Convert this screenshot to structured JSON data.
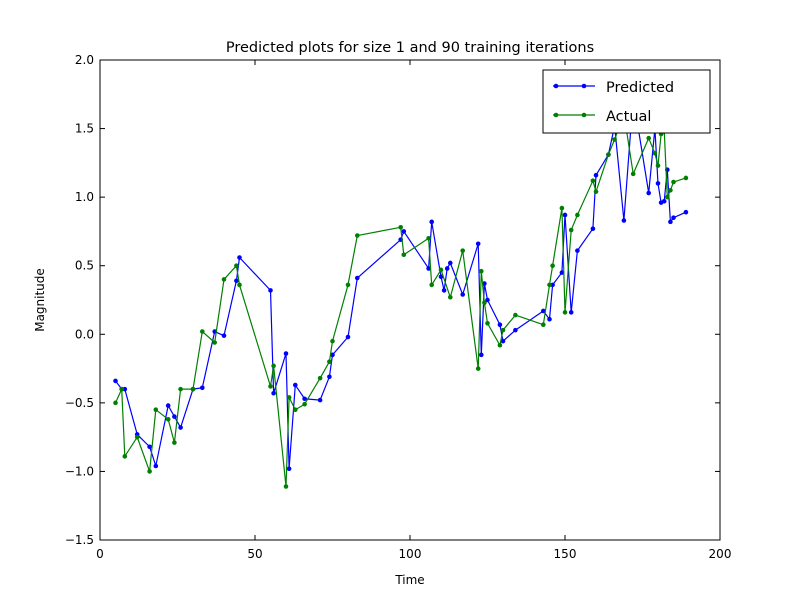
{
  "chart_data": {
    "type": "line",
    "title": "Predicted plots for size 1 and 90 training iterations",
    "xlabel": "Time",
    "ylabel": "Magnitude",
    "xlim": [
      0,
      200
    ],
    "ylim": [
      -1.5,
      2.0
    ],
    "xticks": [
      "0",
      "50",
      "100",
      "150",
      "200"
    ],
    "yticks": [
      "−1.5",
      "−1.0",
      "−0.5",
      "0.0",
      "0.5",
      "1.0",
      "1.5",
      "2.0"
    ],
    "grid": false,
    "legend_position": "top-right",
    "series": [
      {
        "name": "Predicted",
        "color": "#0000ff",
        "points": [
          [
            5,
            -0.34
          ],
          [
            7,
            -0.4
          ],
          [
            8,
            -0.4
          ],
          [
            12,
            -0.73
          ],
          [
            16,
            -0.82
          ],
          [
            18,
            -0.96
          ],
          [
            22,
            -0.52
          ],
          [
            24,
            -0.6
          ],
          [
            26,
            -0.68
          ],
          [
            30,
            -0.4
          ],
          [
            33,
            -0.39
          ],
          [
            37,
            0.02
          ],
          [
            40,
            -0.01
          ],
          [
            44,
            0.39
          ],
          [
            45,
            0.56
          ],
          [
            55,
            0.32
          ],
          [
            56,
            -0.43
          ],
          [
            60,
            -0.14
          ],
          [
            61,
            -0.98
          ],
          [
            63,
            -0.37
          ],
          [
            66,
            -0.47
          ],
          [
            71,
            -0.48
          ],
          [
            74,
            -0.31
          ],
          [
            75,
            -0.15
          ],
          [
            80,
            -0.02
          ],
          [
            83,
            0.41
          ],
          [
            97,
            0.69
          ],
          [
            98,
            0.75
          ],
          [
            106,
            0.48
          ],
          [
            107,
            0.82
          ],
          [
            110,
            0.42
          ],
          [
            111,
            0.32
          ],
          [
            112,
            0.48
          ],
          [
            113,
            0.52
          ],
          [
            117,
            0.29
          ],
          [
            122,
            0.66
          ],
          [
            123,
            -0.15
          ],
          [
            124,
            0.37
          ],
          [
            125,
            0.25
          ],
          [
            129,
            0.07
          ],
          [
            130,
            -0.05
          ],
          [
            134,
            0.03
          ],
          [
            143,
            0.17
          ],
          [
            145,
            0.11
          ],
          [
            146,
            0.36
          ],
          [
            149,
            0.45
          ],
          [
            150,
            0.87
          ],
          [
            152,
            0.16
          ],
          [
            154,
            0.61
          ],
          [
            159,
            0.77
          ],
          [
            160,
            1.16
          ],
          [
            164,
            1.31
          ],
          [
            166,
            1.52
          ],
          [
            169,
            0.83
          ],
          [
            172,
            1.73
          ],
          [
            177,
            1.03
          ],
          [
            179,
            1.5
          ],
          [
            180,
            1.1
          ],
          [
            181,
            0.96
          ],
          [
            182,
            0.97
          ],
          [
            183,
            1.2
          ],
          [
            184,
            0.82
          ],
          [
            185,
            0.85
          ],
          [
            189,
            0.89
          ]
        ]
      },
      {
        "name": "Actual",
        "color": "#008000",
        "points": [
          [
            5,
            -0.5
          ],
          [
            7,
            -0.4
          ],
          [
            8,
            -0.89
          ],
          [
            12,
            -0.75
          ],
          [
            16,
            -1.0
          ],
          [
            18,
            -0.55
          ],
          [
            22,
            -0.62
          ],
          [
            24,
            -0.79
          ],
          [
            26,
            -0.4
          ],
          [
            30,
            -0.4
          ],
          [
            33,
            0.02
          ],
          [
            37,
            -0.06
          ],
          [
            40,
            0.4
          ],
          [
            44,
            0.5
          ],
          [
            45,
            0.36
          ],
          [
            55,
            -0.38
          ],
          [
            56,
            -0.23
          ],
          [
            60,
            -1.11
          ],
          [
            61,
            -0.46
          ],
          [
            63,
            -0.55
          ],
          [
            66,
            -0.51
          ],
          [
            71,
            -0.32
          ],
          [
            74,
            -0.2
          ],
          [
            75,
            -0.05
          ],
          [
            80,
            0.36
          ],
          [
            83,
            0.72
          ],
          [
            97,
            0.78
          ],
          [
            98,
            0.58
          ],
          [
            106,
            0.7
          ],
          [
            107,
            0.36
          ],
          [
            110,
            0.47
          ],
          [
            113,
            0.27
          ],
          [
            117,
            0.61
          ],
          [
            122,
            -0.25
          ],
          [
            123,
            0.46
          ],
          [
            124,
            0.23
          ],
          [
            125,
            0.08
          ],
          [
            129,
            -0.08
          ],
          [
            130,
            0.03
          ],
          [
            134,
            0.14
          ],
          [
            143,
            0.07
          ],
          [
            145,
            0.36
          ],
          [
            146,
            0.5
          ],
          [
            149,
            0.92
          ],
          [
            150,
            0.16
          ],
          [
            152,
            0.76
          ],
          [
            154,
            0.87
          ],
          [
            159,
            1.12
          ],
          [
            160,
            1.04
          ],
          [
            164,
            1.31
          ],
          [
            166,
            1.42
          ],
          [
            169,
            1.61
          ],
          [
            172,
            1.17
          ],
          [
            177,
            1.43
          ],
          [
            179,
            1.32
          ],
          [
            180,
            1.23
          ],
          [
            181,
            1.46
          ],
          [
            182,
            1.49
          ],
          [
            183,
            1.0
          ],
          [
            184,
            1.05
          ],
          [
            185,
            1.11
          ],
          [
            189,
            1.14
          ]
        ]
      }
    ]
  }
}
